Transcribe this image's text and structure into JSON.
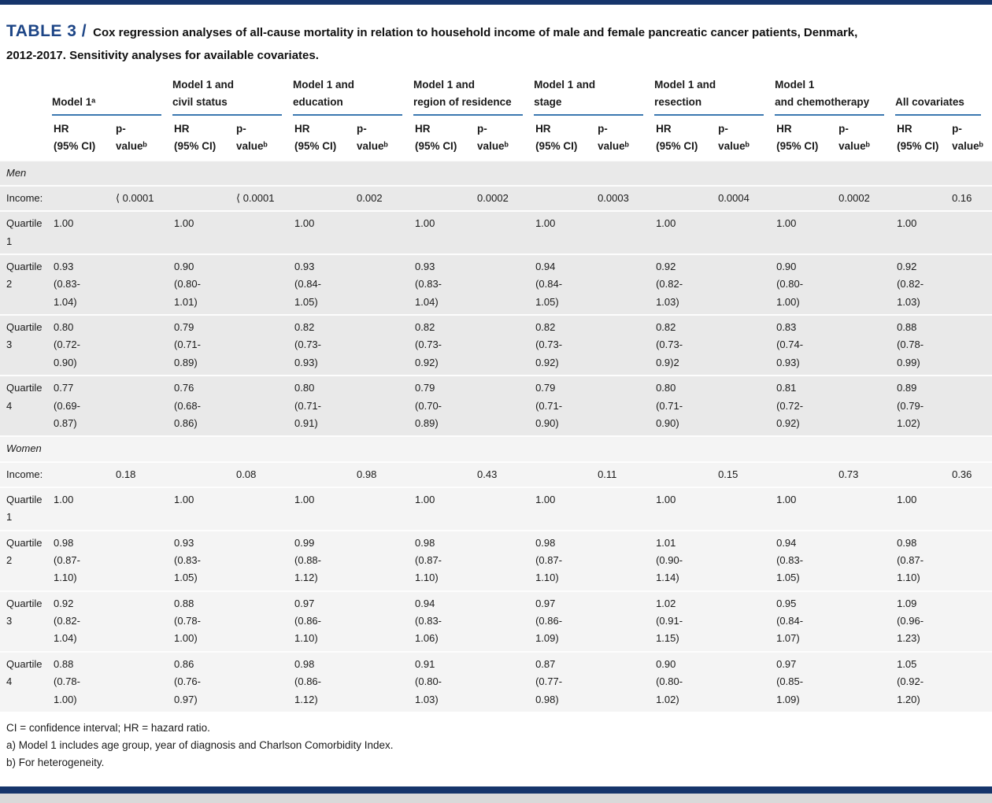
{
  "title": {
    "prefix": "TABLE 3 /",
    "text": "Cox regression analyses of all-cause mortality in relation to household income of male and female pancreatic cancer patients, Denmark,\n2012-2017. Sensitivity analyses for available covariates."
  },
  "colors": {
    "navy_rule": "#16356b",
    "title_blue": "#1d4586",
    "header_underline_blue": "#3b78b0",
    "row_gray": "#e9e9e9",
    "section_light": "#f4f4f4"
  },
  "table": {
    "groups": [
      {
        "label": "Model 1ᵃ"
      },
      {
        "label": "Model 1 and\ncivil status"
      },
      {
        "label": "Model 1 and\neducation"
      },
      {
        "label": "Model 1 and\nregion of residence"
      },
      {
        "label": "Model 1 and\nstage"
      },
      {
        "label": "Model 1 and\nresection"
      },
      {
        "label": "Model 1\nand chemotherapy"
      },
      {
        "label": "All covariates"
      }
    ],
    "subheader": {
      "hr": "HR\n(95% CI)",
      "p": "p-\nvalueᵇ"
    },
    "sections": [
      {
        "label": "Men",
        "rows": [
          {
            "label": "Income:",
            "cells": [
              {
                "hr": "",
                "p": "⟨ 0.0001"
              },
              {
                "hr": "",
                "p": "⟨ 0.0001"
              },
              {
                "hr": "",
                "p": "0.002"
              },
              {
                "hr": "",
                "p": "0.0002"
              },
              {
                "hr": "",
                "p": "0.0003"
              },
              {
                "hr": "",
                "p": "0.0004"
              },
              {
                "hr": "",
                "p": "0.0002"
              },
              {
                "hr": "",
                "p": "0.16"
              }
            ]
          },
          {
            "label": "Quartile\n1",
            "cells": [
              {
                "hr": "1.00",
                "p": ""
              },
              {
                "hr": "1.00",
                "p": ""
              },
              {
                "hr": "1.00",
                "p": ""
              },
              {
                "hr": "1.00",
                "p": ""
              },
              {
                "hr": "1.00",
                "p": ""
              },
              {
                "hr": "1.00",
                "p": ""
              },
              {
                "hr": "1.00",
                "p": ""
              },
              {
                "hr": "1.00",
                "p": ""
              }
            ]
          },
          {
            "label": "Quartile\n2",
            "cells": [
              {
                "hr": "0.93\n(0.83-\n1.04)",
                "p": ""
              },
              {
                "hr": "0.90\n(0.80-\n1.01)",
                "p": ""
              },
              {
                "hr": "0.93\n(0.84-\n1.05)",
                "p": ""
              },
              {
                "hr": "0.93\n(0.83-\n1.04)",
                "p": ""
              },
              {
                "hr": "0.94\n(0.84-\n1.05)",
                "p": ""
              },
              {
                "hr": "0.92\n(0.82-\n1.03)",
                "p": ""
              },
              {
                "hr": "0.90\n(0.80-\n1.00)",
                "p": ""
              },
              {
                "hr": "0.92\n(0.82-\n1.03)",
                "p": ""
              }
            ]
          },
          {
            "label": "Quartile\n3",
            "cells": [
              {
                "hr": "0.80\n(0.72-\n0.90)",
                "p": ""
              },
              {
                "hr": "0.79\n(0.71-\n0.89)",
                "p": ""
              },
              {
                "hr": "0.82\n(0.73-\n0.93)",
                "p": ""
              },
              {
                "hr": "0.82\n(0.73-\n0.92)",
                "p": ""
              },
              {
                "hr": "0.82\n(0.73-\n0.92)",
                "p": ""
              },
              {
                "hr": "0.82\n(0.73-\n0.9)2",
                "p": ""
              },
              {
                "hr": "0.83\n(0.74-\n0.93)",
                "p": ""
              },
              {
                "hr": "0.88\n(0.78-\n0.99)",
                "p": ""
              }
            ]
          },
          {
            "label": "Quartile\n4",
            "cells": [
              {
                "hr": "0.77\n(0.69-\n0.87)",
                "p": ""
              },
              {
                "hr": "0.76\n(0.68-\n0.86)",
                "p": ""
              },
              {
                "hr": "0.80\n(0.71-\n0.91)",
                "p": ""
              },
              {
                "hr": "0.79\n(0.70-\n0.89)",
                "p": ""
              },
              {
                "hr": "0.79\n(0.71-\n0.90)",
                "p": ""
              },
              {
                "hr": "0.80\n(0.71-\n0.90)",
                "p": ""
              },
              {
                "hr": "0.81\n(0.72-\n0.92)",
                "p": ""
              },
              {
                "hr": "0.89\n(0.79-\n1.02)",
                "p": ""
              }
            ]
          }
        ]
      },
      {
        "label": "Women",
        "rows": [
          {
            "label": "Income:",
            "cells": [
              {
                "hr": "",
                "p": "0.18"
              },
              {
                "hr": "",
                "p": "0.08"
              },
              {
                "hr": "",
                "p": "0.98"
              },
              {
                "hr": "",
                "p": "0.43"
              },
              {
                "hr": "",
                "p": "0.11"
              },
              {
                "hr": "",
                "p": "0.15"
              },
              {
                "hr": "",
                "p": "0.73"
              },
              {
                "hr": "",
                "p": "0.36"
              }
            ]
          },
          {
            "label": "Quartile\n1",
            "cells": [
              {
                "hr": "1.00",
                "p": ""
              },
              {
                "hr": "1.00",
                "p": ""
              },
              {
                "hr": "1.00",
                "p": ""
              },
              {
                "hr": "1.00",
                "p": ""
              },
              {
                "hr": "1.00",
                "p": ""
              },
              {
                "hr": "1.00",
                "p": ""
              },
              {
                "hr": "1.00",
                "p": ""
              },
              {
                "hr": "1.00",
                "p": ""
              }
            ]
          },
          {
            "label": "Quartile\n2",
            "cells": [
              {
                "hr": "0.98\n(0.87-\n1.10)",
                "p": ""
              },
              {
                "hr": "0.93\n(0.83-\n1.05)",
                "p": ""
              },
              {
                "hr": "0.99\n(0.88-\n1.12)",
                "p": ""
              },
              {
                "hr": "0.98\n(0.87-\n1.10)",
                "p": ""
              },
              {
                "hr": "0.98\n(0.87-\n1.10)",
                "p": ""
              },
              {
                "hr": "1.01\n(0.90-\n1.14)",
                "p": ""
              },
              {
                "hr": "0.94\n(0.83-\n1.05)",
                "p": ""
              },
              {
                "hr": "0.98\n(0.87-\n1.10)",
                "p": ""
              }
            ]
          },
          {
            "label": "Quartile\n3",
            "cells": [
              {
                "hr": "0.92\n(0.82-\n1.04)",
                "p": ""
              },
              {
                "hr": "0.88\n(0.78-\n1.00)",
                "p": ""
              },
              {
                "hr": "0.97\n(0.86-\n1.10)",
                "p": ""
              },
              {
                "hr": "0.94\n(0.83-\n1.06)",
                "p": ""
              },
              {
                "hr": "0.97\n(0.86-\n1.09)",
                "p": ""
              },
              {
                "hr": "1.02\n(0.91-\n1.15)",
                "p": ""
              },
              {
                "hr": "0.95\n(0.84-\n1.07)",
                "p": ""
              },
              {
                "hr": "1.09\n(0.96-\n1.23)",
                "p": ""
              }
            ]
          },
          {
            "label": "Quartile\n4",
            "cells": [
              {
                "hr": "0.88\n(0.78-\n1.00)",
                "p": ""
              },
              {
                "hr": "0.86\n(0.76-\n0.97)",
                "p": ""
              },
              {
                "hr": "0.98\n(0.86-\n1.12)",
                "p": ""
              },
              {
                "hr": "0.91\n(0.80-\n1.03)",
                "p": ""
              },
              {
                "hr": "0.87\n(0.77-\n0.98)",
                "p": ""
              },
              {
                "hr": "0.90\n(0.80-\n1.02)",
                "p": ""
              },
              {
                "hr": "0.97\n(0.85-\n1.09)",
                "p": ""
              },
              {
                "hr": "1.05\n(0.92-\n1.20)",
                "p": ""
              }
            ]
          }
        ]
      }
    ]
  },
  "footnotes": [
    "CI = confidence interval; HR = hazard ratio.",
    "a) Model 1 includes age group, year of diagnosis and Charlson Comorbidity Index.",
    "b) For heterogeneity."
  ]
}
